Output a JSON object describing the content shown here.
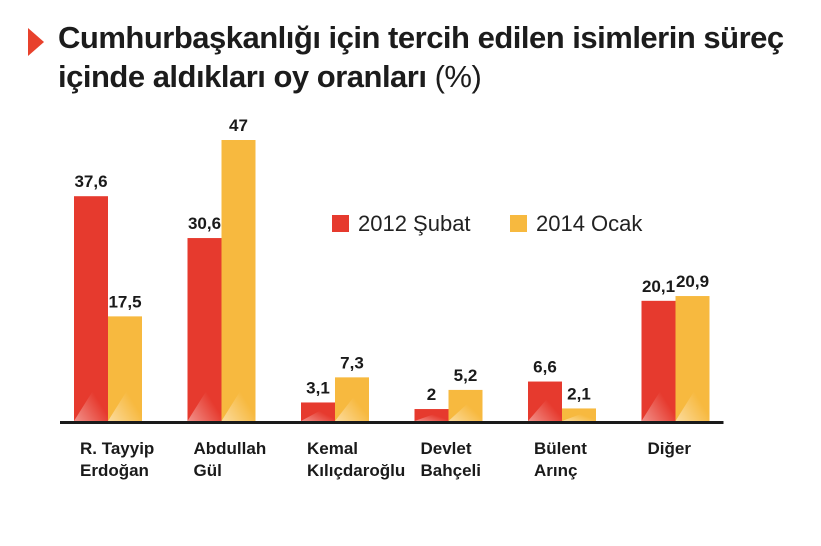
{
  "title": {
    "text": "Cumhurbaşkanlığı için tercih edilen isimlerin süreç içinde aldıkları oy oranları",
    "unit": "(%)"
  },
  "colors": {
    "accent": "#e8412c",
    "series_2012": "#e63a2e",
    "series_2014": "#f7b93f",
    "axis": "#1a1a1a"
  },
  "chart_data": {
    "type": "bar",
    "title": "Cumhurbaşkanlığı için tercih edilen isimlerin süreç içinde aldıkları oy oranları (%)",
    "categories": [
      [
        "R. Tayyip",
        "Erdoğan"
      ],
      [
        "Abdullah",
        "Gül"
      ],
      [
        "Kemal",
        "Kılıçdaroğlu"
      ],
      [
        "Devlet",
        "Bahçeli"
      ],
      [
        "Bülent",
        "Arınç"
      ],
      [
        "Diğer"
      ]
    ],
    "series": [
      {
        "name": "2012 Şubat",
        "color": "#e63a2e",
        "values": [
          37.6,
          30.6,
          3.1,
          2,
          6.6,
          20.1
        ],
        "labels": [
          "37,6",
          "30,6",
          "3,1",
          "2",
          "6,6",
          "20,1"
        ]
      },
      {
        "name": "2014 Ocak",
        "color": "#f7b93f",
        "values": [
          17.5,
          47,
          7.3,
          5.2,
          2.1,
          20.9
        ],
        "labels": [
          "17,5",
          "47",
          "7,3",
          "5,2",
          "2,1",
          "20,9"
        ]
      }
    ],
    "ylim": [
      0,
      47
    ],
    "grid": false,
    "legend_position": "top-center",
    "xlabel": "",
    "ylabel": ""
  }
}
